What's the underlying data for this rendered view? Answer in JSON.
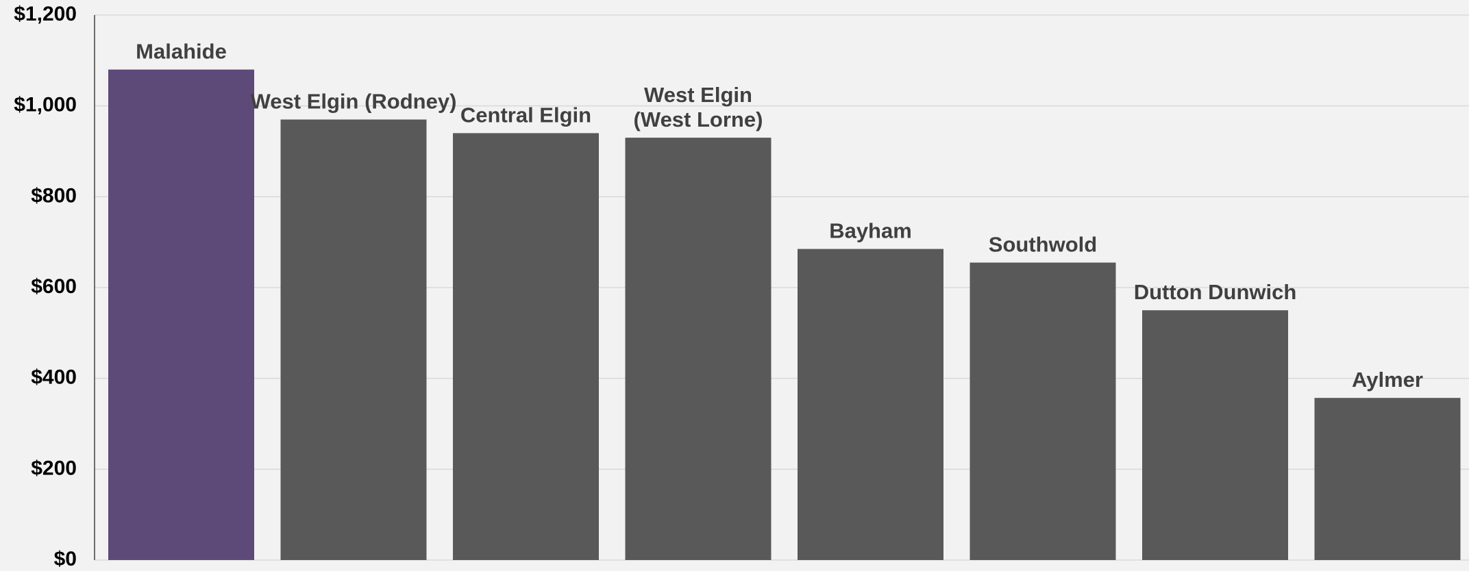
{
  "chart_data": {
    "type": "bar",
    "title": "",
    "xlabel": "",
    "ylabel": "",
    "categories": [
      [
        "Malahide"
      ],
      [
        "West Elgin (Rodney)"
      ],
      [
        "Central Elgin"
      ],
      [
        "West Elgin",
        "(West Lorne)"
      ],
      [
        "Bayham"
      ],
      [
        "Southwold"
      ],
      [
        "Dutton Dunwich"
      ],
      [
        "Aylmer"
      ]
    ],
    "values": [
      1080,
      970,
      940,
      930,
      685,
      655,
      550,
      357
    ],
    "ylim": [
      0,
      1200
    ],
    "y_ticks": [
      0,
      200,
      400,
      600,
      800,
      1000,
      1200
    ],
    "y_tick_labels": [
      "$0",
      "$200",
      "$400",
      "$600",
      "$800",
      "$1,000",
      "$1,200"
    ],
    "grid": true,
    "legend": "none",
    "colors": {
      "highlight": "#5e4a78",
      "default": "#595959",
      "label": "#404040",
      "grid": "#d9d9d9",
      "background": "#f2f2f2"
    },
    "highlight_index": 0
  }
}
